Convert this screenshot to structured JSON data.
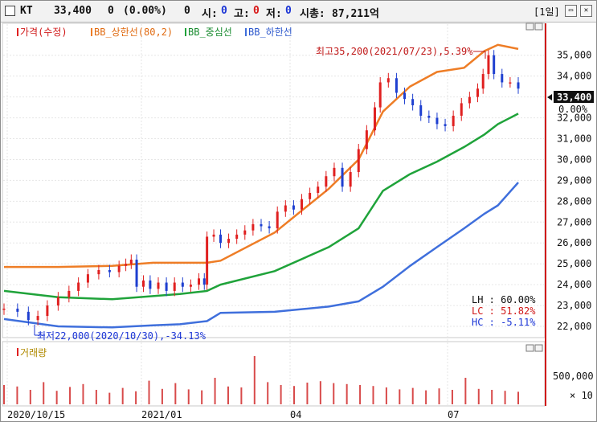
{
  "header": {
    "name": "KT",
    "price": "33,400",
    "change": "0",
    "change_pct": "(0.00%)",
    "volume": "0",
    "open_label": "시:",
    "open_value": "0",
    "high_label": "고:",
    "high_value": "0",
    "low_label": "저:",
    "low_value": "0",
    "mcap_label": "시총:",
    "mcap_value": "87,211억",
    "period": "[1일]",
    "minimize_icon": "minimize-icon",
    "close_icon": "close-icon"
  },
  "legend": {
    "price": "가격(수정)",
    "bb_upper": "BB_상한선(80,2)",
    "bb_mid": "BB_중심선",
    "bb_lower": "BB_하한선"
  },
  "colors": {
    "candle_up": "#e02020",
    "candle_down": "#1e3fd0",
    "bb_upper": "#ee7d26",
    "bb_mid": "#1fa33a",
    "bb_lower": "#3f6fdc",
    "volume": "#d84a4a"
  },
  "annotations": {
    "high": "최고35,200(2021/07/23),5.39%",
    "low": "최저22,000(2020/10/30),-34.13%",
    "current_price": "33,400",
    "current_pct": "0.00%",
    "lh": "LH : 60.00%",
    "lc": "LC : 51.82%",
    "hc": "HC : -5.11%"
  },
  "volume_panel": {
    "title": "거래량",
    "tick_label": "500,000",
    "multiplier": "× 10"
  },
  "chart_data": {
    "type": "line",
    "title": "KT",
    "xlabel": "",
    "ylabel": "",
    "ylim": [
      21500,
      36300
    ],
    "x_ticks": [
      "2020/10/15",
      "2021/01",
      "04",
      "07"
    ],
    "y_ticks": [
      22000,
      23000,
      24000,
      25000,
      26000,
      27000,
      28000,
      29000,
      30000,
      31000,
      32000,
      33000,
      34000,
      35000
    ],
    "y_tick_labels": [
      "22,000",
      "23,000",
      "24,000",
      "25,000",
      "26,000",
      "27,000",
      "28,000",
      "29,000",
      "30,000",
      "31,000",
      "32,000",
      "33,000",
      "34,000",
      "35,000"
    ],
    "close_series": [
      [
        0,
        22850
      ],
      [
        10,
        22700
      ],
      [
        18,
        22300
      ],
      [
        25,
        22500
      ],
      [
        32,
        23000
      ],
      [
        40,
        23400
      ],
      [
        48,
        23700
      ],
      [
        55,
        24100
      ],
      [
        62,
        24500
      ],
      [
        70,
        24700
      ],
      [
        78,
        24600
      ],
      [
        85,
        24900
      ],
      [
        90,
        25000
      ],
      [
        94,
        25200
      ],
      [
        98,
        23900
      ],
      [
        103,
        24200
      ],
      [
        108,
        23800
      ],
      [
        114,
        24100
      ],
      [
        120,
        23700
      ],
      [
        126,
        24100
      ],
      [
        132,
        23900
      ],
      [
        138,
        24000
      ],
      [
        144,
        24300
      ],
      [
        148,
        24000
      ],
      [
        150,
        26300
      ],
      [
        155,
        26400
      ],
      [
        160,
        26000
      ],
      [
        166,
        26200
      ],
      [
        172,
        26400
      ],
      [
        178,
        26600
      ],
      [
        184,
        26900
      ],
      [
        190,
        26800
      ],
      [
        196,
        26700
      ],
      [
        202,
        27500
      ],
      [
        208,
        27800
      ],
      [
        214,
        27600
      ],
      [
        220,
        28100
      ],
      [
        226,
        28400
      ],
      [
        232,
        28700
      ],
      [
        238,
        29200
      ],
      [
        244,
        29600
      ],
      [
        250,
        28700
      ],
      [
        256,
        29400
      ],
      [
        262,
        30500
      ],
      [
        268,
        31400
      ],
      [
        274,
        32500
      ],
      [
        278,
        33700
      ],
      [
        284,
        33900
      ],
      [
        290,
        33200
      ],
      [
        296,
        32900
      ],
      [
        302,
        32600
      ],
      [
        308,
        32100
      ],
      [
        314,
        32000
      ],
      [
        320,
        31700
      ],
      [
        326,
        31600
      ],
      [
        332,
        32100
      ],
      [
        338,
        32700
      ],
      [
        344,
        33000
      ],
      [
        350,
        33400
      ],
      [
        354,
        34100
      ],
      [
        358,
        35000
      ],
      [
        362,
        34100
      ],
      [
        368,
        33700
      ],
      [
        374,
        33700
      ],
      [
        380,
        33400
      ]
    ],
    "open_series": [
      [
        0,
        22800
      ],
      [
        10,
        22850
      ],
      [
        18,
        22700
      ],
      [
        25,
        22300
      ],
      [
        32,
        22500
      ],
      [
        40,
        23000
      ],
      [
        48,
        23400
      ],
      [
        55,
        23700
      ],
      [
        62,
        24100
      ],
      [
        70,
        24500
      ],
      [
        78,
        24700
      ],
      [
        85,
        24600
      ],
      [
        90,
        24900
      ],
      [
        94,
        25000
      ],
      [
        98,
        25200
      ],
      [
        103,
        23900
      ],
      [
        108,
        24200
      ],
      [
        114,
        23800
      ],
      [
        120,
        24100
      ],
      [
        126,
        23700
      ],
      [
        132,
        24100
      ],
      [
        138,
        23900
      ],
      [
        144,
        24000
      ],
      [
        148,
        24300
      ],
      [
        150,
        24000
      ],
      [
        155,
        26300
      ],
      [
        160,
        26400
      ],
      [
        166,
        26000
      ],
      [
        172,
        26200
      ],
      [
        178,
        26400
      ],
      [
        184,
        26600
      ],
      [
        190,
        26900
      ],
      [
        196,
        26800
      ],
      [
        202,
        26700
      ],
      [
        208,
        27500
      ],
      [
        214,
        27800
      ],
      [
        220,
        27600
      ],
      [
        226,
        28100
      ],
      [
        232,
        28400
      ],
      [
        238,
        28700
      ],
      [
        244,
        29200
      ],
      [
        250,
        29600
      ],
      [
        256,
        28700
      ],
      [
        262,
        29400
      ],
      [
        268,
        30500
      ],
      [
        274,
        31400
      ],
      [
        278,
        32500
      ],
      [
        284,
        33700
      ],
      [
        290,
        33900
      ],
      [
        296,
        33200
      ],
      [
        302,
        32900
      ],
      [
        308,
        32600
      ],
      [
        314,
        32100
      ],
      [
        320,
        32000
      ],
      [
        326,
        31700
      ],
      [
        332,
        31600
      ],
      [
        338,
        32100
      ],
      [
        344,
        32700
      ],
      [
        350,
        33000
      ],
      [
        354,
        33400
      ],
      [
        358,
        34100
      ],
      [
        362,
        35000
      ],
      [
        368,
        34100
      ],
      [
        374,
        33700
      ],
      [
        380,
        33700
      ]
    ],
    "series": [
      {
        "name": "BB_상한선(80,2)",
        "x": [
          0,
          40,
          80,
          110,
          130,
          150,
          160,
          200,
          240,
          262,
          280,
          300,
          320,
          340,
          355,
          365,
          380
        ],
        "values": [
          24850,
          24850,
          24900,
          25050,
          25050,
          25050,
          25150,
          26500,
          28600,
          30000,
          32300,
          33500,
          34200,
          34400,
          35200,
          35500,
          35300
        ]
      },
      {
        "name": "BB_중심선",
        "x": [
          0,
          40,
          80,
          110,
          130,
          150,
          160,
          200,
          240,
          262,
          280,
          300,
          320,
          340,
          355,
          365,
          380
        ],
        "values": [
          23700,
          23400,
          23300,
          23450,
          23550,
          23700,
          24000,
          24650,
          25800,
          26700,
          28500,
          29300,
          29900,
          30600,
          31200,
          31700,
          32200
        ]
      },
      {
        "name": "BB_하한선",
        "x": [
          0,
          40,
          80,
          110,
          130,
          150,
          160,
          200,
          240,
          262,
          280,
          300,
          320,
          340,
          355,
          365,
          380
        ],
        "values": [
          22350,
          22000,
          21950,
          22050,
          22100,
          22250,
          22650,
          22700,
          22950,
          23200,
          23900,
          24900,
          25800,
          26700,
          27400,
          27800,
          28900
        ]
      }
    ],
    "volume_values": [
      0.4,
      0.37,
      0.3,
      0.46,
      0.28,
      0.36,
      0.42,
      0.3,
      0.24,
      0.34,
      0.27,
      0.49,
      0.32,
      0.44,
      0.31,
      0.29,
      0.55,
      0.37,
      0.35,
      1.0,
      0.46,
      0.4,
      0.38,
      0.45,
      0.48,
      0.44,
      0.42,
      0.4,
      0.38,
      0.35,
      0.31,
      0.34,
      0.29,
      0.33,
      0.3,
      0.55,
      0.32,
      0.3,
      0.28,
      0.26
    ],
    "grid": true,
    "legend_position": "top-left"
  }
}
